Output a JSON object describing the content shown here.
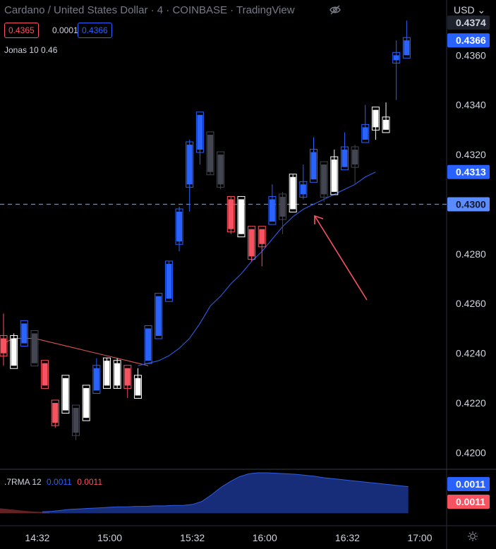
{
  "header": {
    "title": "Cardano / United States Dollar · 4 · COINBASE · TradingView",
    "currency": "USD",
    "bid": "0.4365",
    "spread": "0.0001",
    "ask": "0.4366",
    "indicator_label": "Jonas 10 0.46",
    "eye_icon": "eye-crossed-icon"
  },
  "sub_indicator": {
    "name": ".7RMA 12",
    "value1": "0.0011",
    "value2": "0.0011"
  },
  "colors": {
    "background": "#000000",
    "up": "#2962ff",
    "down": "#f7525f",
    "neutral_dark": "#434651",
    "white": "#ffffff",
    "ma_blue": "#2e5ce6",
    "ma_red": "#d9534f",
    "text": "#d1d4dc"
  },
  "chart_data": {
    "type": "candlestick",
    "y_range": [
      0.4195,
      0.4376
    ],
    "y_ticks": [
      "0.4200",
      "0.4220",
      "0.4240",
      "0.4260",
      "0.4280",
      "0.4300",
      "0.4320",
      "0.4340",
      "0.4360"
    ],
    "x_ticks": [
      {
        "label": "14:32",
        "index": 3
      },
      {
        "label": "15:00",
        "index": 10
      },
      {
        "label": "15:32",
        "index": 18
      },
      {
        "label": "16:00",
        "index": 25
      },
      {
        "label": "16:32",
        "index": 33
      },
      {
        "label": "17:00",
        "index": 40
      }
    ],
    "price_labels": [
      {
        "value": 0.4374,
        "text": "0.4374",
        "style": "dark"
      },
      {
        "value": 0.4366,
        "text": "0.4366",
        "style": "blue"
      },
      {
        "value": 0.4313,
        "text": "0.4313",
        "style": "blue"
      },
      {
        "value": 0.43,
        "text": "0.4300",
        "style": "light"
      }
    ],
    "horizontal_line": 0.43,
    "candles": [
      {
        "o": 0.424,
        "h": 0.4256,
        "l": 0.4235,
        "c": 0.4246,
        "s": "red"
      },
      {
        "o": 0.4235,
        "h": 0.4248,
        "l": 0.4235,
        "c": 0.4246,
        "s": "white"
      },
      {
        "o": 0.4244,
        "h": 0.4252,
        "l": 0.4244,
        "c": 0.4252,
        "s": "blue"
      },
      {
        "o": 0.4248,
        "h": 0.4248,
        "l": 0.4236,
        "c": 0.4236,
        "s": "dark"
      },
      {
        "o": 0.4236,
        "h": 0.4236,
        "l": 0.4227,
        "c": 0.4227,
        "s": "red"
      },
      {
        "o": 0.422,
        "h": 0.422,
        "l": 0.421,
        "c": 0.4212,
        "s": "red"
      },
      {
        "o": 0.4217,
        "h": 0.423,
        "l": 0.4217,
        "c": 0.423,
        "s": "white"
      },
      {
        "o": 0.4218,
        "h": 0.4218,
        "l": 0.4205,
        "c": 0.4208,
        "s": "dark"
      },
      {
        "o": 0.4214,
        "h": 0.4226,
        "l": 0.4214,
        "c": 0.4226,
        "s": "white"
      },
      {
        "o": 0.4225,
        "h": 0.4238,
        "l": 0.4225,
        "c": 0.4234,
        "s": "blue"
      },
      {
        "o": 0.4227,
        "h": 0.4238,
        "l": 0.4227,
        "c": 0.4237,
        "s": "white"
      },
      {
        "o": 0.4236,
        "h": 0.4238,
        "l": 0.4226,
        "c": 0.4227,
        "s": "white"
      },
      {
        "o": 0.4234,
        "h": 0.4234,
        "l": 0.4222,
        "c": 0.4227,
        "s": "red"
      },
      {
        "o": 0.4223,
        "h": 0.4234,
        "l": 0.4223,
        "c": 0.423,
        "s": "white"
      },
      {
        "o": 0.4237,
        "h": 0.425,
        "l": 0.4237,
        "c": 0.425,
        "s": "blue"
      },
      {
        "o": 0.4247,
        "h": 0.4263,
        "l": 0.4247,
        "c": 0.4263,
        "s": "blue"
      },
      {
        "o": 0.4262,
        "h": 0.4277,
        "l": 0.4262,
        "c": 0.4276,
        "s": "blue"
      },
      {
        "o": 0.4285,
        "h": 0.4299,
        "l": 0.4281,
        "c": 0.4297,
        "s": "blue"
      },
      {
        "o": 0.4308,
        "h": 0.4326,
        "l": 0.4297,
        "c": 0.4324,
        "s": "blue"
      },
      {
        "o": 0.4322,
        "h": 0.4336,
        "l": 0.4316,
        "c": 0.4336,
        "s": "blue"
      },
      {
        "o": 0.4328,
        "h": 0.4328,
        "l": 0.4312,
        "c": 0.4313,
        "s": "dark"
      },
      {
        "o": 0.432,
        "h": 0.432,
        "l": 0.4306,
        "c": 0.4308,
        "s": "dark"
      },
      {
        "o": 0.4302,
        "h": 0.4303,
        "l": 0.4288,
        "c": 0.429,
        "s": "red"
      },
      {
        "o": 0.4288,
        "h": 0.4302,
        "l": 0.4288,
        "c": 0.4302,
        "s": "white"
      },
      {
        "o": 0.429,
        "h": 0.429,
        "l": 0.4277,
        "c": 0.4279,
        "s": "red"
      },
      {
        "o": 0.429,
        "h": 0.429,
        "l": 0.4275,
        "c": 0.4284,
        "s": "red"
      },
      {
        "o": 0.4293,
        "h": 0.4308,
        "l": 0.4293,
        "c": 0.4302,
        "s": "blue"
      },
      {
        "o": 0.4303,
        "h": 0.4305,
        "l": 0.4288,
        "c": 0.4295,
        "s": "dark"
      },
      {
        "o": 0.4298,
        "h": 0.4312,
        "l": 0.4298,
        "c": 0.4311,
        "s": "white"
      },
      {
        "o": 0.4304,
        "h": 0.4316,
        "l": 0.4302,
        "c": 0.4308,
        "s": "blue"
      },
      {
        "o": 0.431,
        "h": 0.4327,
        "l": 0.431,
        "c": 0.4321,
        "s": "blue"
      },
      {
        "o": 0.4316,
        "h": 0.4316,
        "l": 0.4301,
        "c": 0.4304,
        "s": "dark"
      },
      {
        "o": 0.4305,
        "h": 0.4322,
        "l": 0.4305,
        "c": 0.4318,
        "s": "white"
      },
      {
        "o": 0.4315,
        "h": 0.4329,
        "l": 0.4315,
        "c": 0.4322,
        "s": "blue"
      },
      {
        "o": 0.4322,
        "h": 0.4324,
        "l": 0.4308,
        "c": 0.4316,
        "s": "dark"
      },
      {
        "o": 0.4326,
        "h": 0.434,
        "l": 0.4326,
        "c": 0.4331,
        "s": "blue"
      },
      {
        "o": 0.4338,
        "h": 0.4338,
        "l": 0.4326,
        "c": 0.4331,
        "s": "white"
      },
      {
        "o": 0.433,
        "h": 0.4341,
        "l": 0.433,
        "c": 0.4334,
        "s": "white"
      },
      {
        "o": 0.4358,
        "h": 0.4366,
        "l": 0.4342,
        "c": 0.436,
        "s": "blue"
      },
      {
        "o": 0.436,
        "h": 0.4374,
        "l": 0.436,
        "c": 0.4366,
        "s": "blue"
      }
    ],
    "ma_red": [
      0.4244,
      0.4246,
      0.4246,
      0.4246,
      0.4245,
      0.4244,
      0.4243,
      0.4242,
      0.4241,
      0.424,
      0.4239,
      0.4238,
      0.4237,
      0.4236,
      0.4235
    ],
    "ma_blue": [
      0.4235,
      0.4236,
      0.4237,
      0.4239,
      0.4242,
      0.4246,
      0.4252,
      0.4259,
      0.4263,
      0.4268,
      0.4272,
      0.4277,
      0.4281,
      0.4286,
      0.4291,
      0.4295,
      0.4298,
      0.43,
      0.4302,
      0.4304,
      0.4306,
      0.4308,
      0.4311,
      0.4313
    ],
    "ma_red_start_index": 0,
    "ma_blue_start_index": 13,
    "sub_red": [
      0.28,
      0.26,
      0.24,
      0.22,
      0.21,
      0.2
    ],
    "sub_blue": [
      0.21,
      0.22,
      0.24,
      0.26,
      0.27,
      0.28,
      0.29,
      0.3,
      0.31,
      0.31,
      0.32,
      0.32,
      0.33,
      0.33,
      0.34,
      0.34,
      0.36,
      0.42,
      0.55,
      0.7,
      0.82,
      0.92,
      0.98,
      1.0,
      1.0,
      0.99,
      0.98,
      0.97,
      0.95,
      0.93,
      0.9,
      0.88,
      0.86,
      0.84,
      0.82,
      0.8,
      0.78,
      0.76,
      0.74,
      0.72
    ]
  },
  "axis_icon": "gear-icon"
}
